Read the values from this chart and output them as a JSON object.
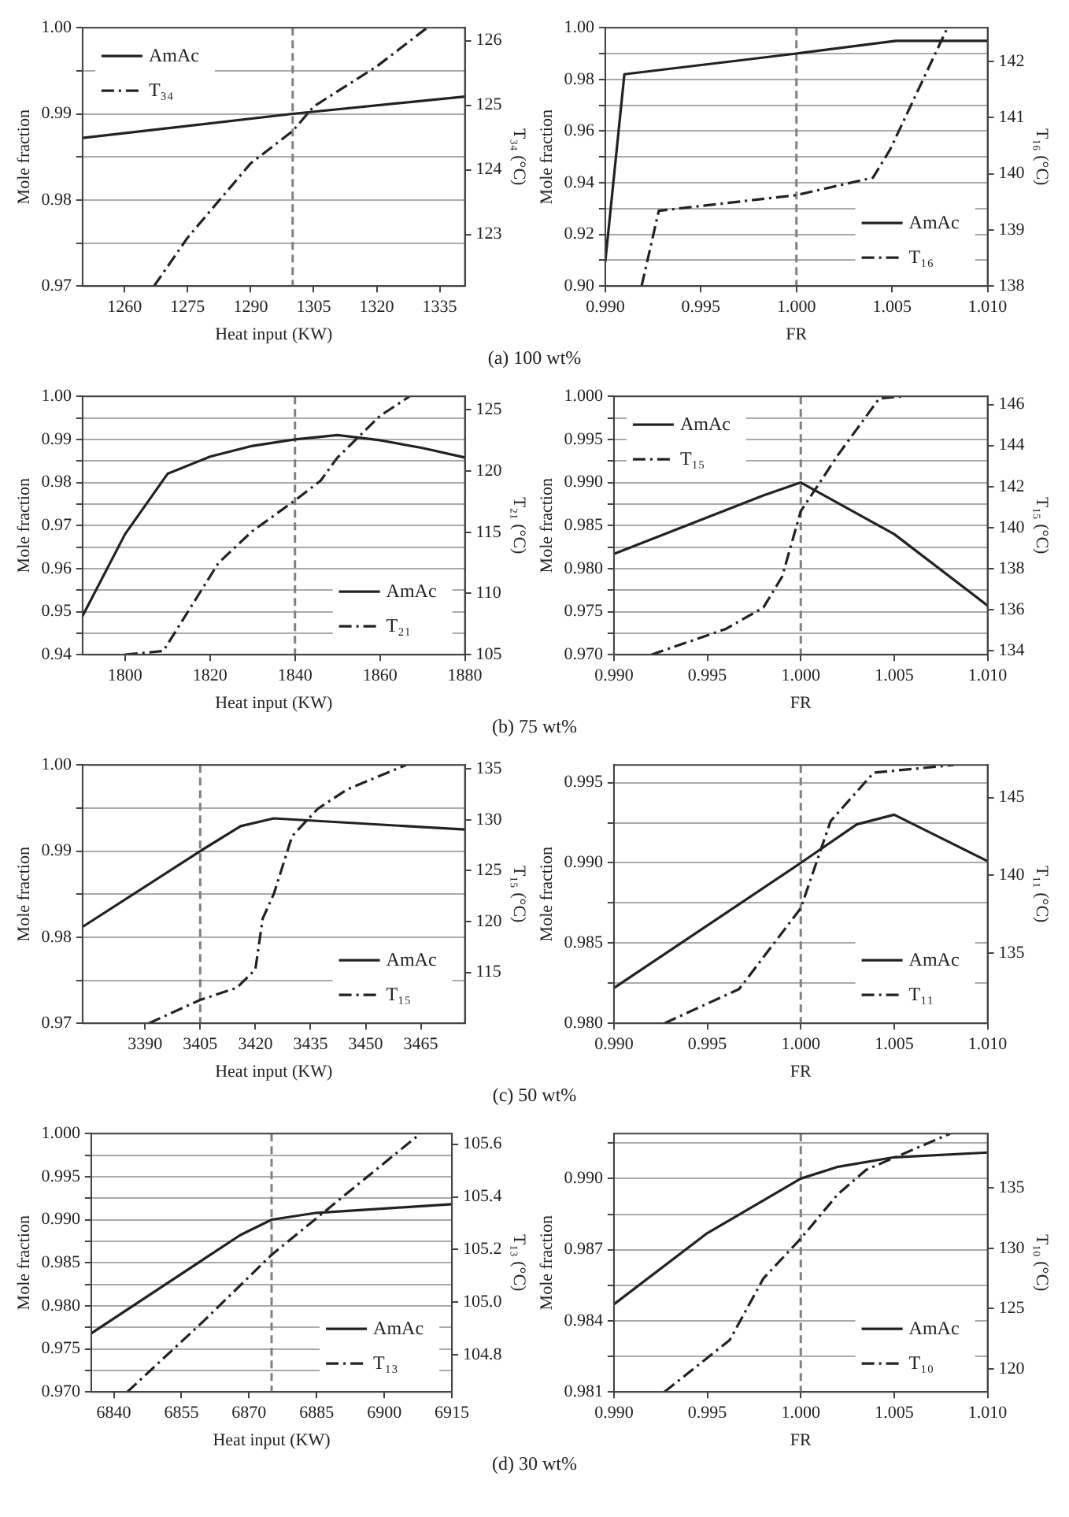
{
  "chart_data": [
    {
      "type": "line",
      "xlabel": "Heat input (KW)",
      "ylabel": "Mole fraction",
      "y2label": "T₃₄ (°C)",
      "annotations": [
        "(a) 100 wt%"
      ],
      "legend": "top left",
      "grid": "y",
      "xlim": [
        1250,
        1341
      ],
      "xticks": [
        1260,
        1275,
        1290,
        1305,
        1320,
        1335
      ],
      "ylim": [
        0.97,
        1.0
      ],
      "yticks": [
        0.97,
        {
          "value": 0.975,
          "label": null
        },
        0.98,
        {
          "value": 0.985,
          "label": null
        },
        0.99,
        {
          "value": 0.995,
          "label": null
        },
        {
          "value": 1.0,
          "label": "1.00"
        }
      ],
      "y2lim": [
        122.2,
        126.2
      ],
      "y2ticks": [
        123,
        124,
        125,
        126
      ],
      "ref_lines": [
        {
          "axis": "x",
          "value": 1300,
          "label": null,
          "color": "#808080",
          "line_style": "dashed"
        }
      ],
      "series": [
        {
          "name": "AmAc",
          "color": "#222222",
          "line_style": "solid",
          "x": [
            1250,
            1300,
            1341
          ],
          "values": [
            0.9872,
            0.99,
            0.992
          ]
        },
        {
          "name": "T₃₄",
          "color": "#222222",
          "line_style": "dashdot",
          "axis": "y2",
          "x": [
            1267,
            1275,
            1290,
            1300,
            1305,
            1320,
            1332
          ],
          "values": [
            122.2,
            122.95,
            124.1,
            124.6,
            124.98,
            125.6,
            126.2
          ]
        }
      ]
    },
    {
      "type": "line",
      "xlabel": "FR",
      "ylabel": "Mole fraction",
      "y2label": "T₁₆ (°C)",
      "legend": "bottom right",
      "grid": "y",
      "xlim": [
        0.99,
        1.01
      ],
      "xticks": [
        {
          "value": 0.99,
          "label": "0.990"
        },
        0.995,
        {
          "value": 1.0,
          "label": "1.000"
        },
        1.005,
        {
          "value": 1.01,
          "label": "1.010"
        }
      ],
      "ylim": [
        0.9,
        1.0
      ],
      "yticks": [
        {
          "value": 0.9,
          "label": "0.90"
        },
        {
          "value": 0.91,
          "label": null
        },
        0.92,
        {
          "value": 0.93,
          "label": null
        },
        0.94,
        {
          "value": 0.95,
          "label": null
        },
        0.96,
        {
          "value": 0.97,
          "label": null
        },
        0.98,
        {
          "value": 0.99,
          "label": null
        },
        {
          "value": 1.0,
          "label": "1.00"
        }
      ],
      "y2lim": [
        138,
        142.6
      ],
      "y2ticks": [
        138,
        139,
        140,
        141,
        142
      ],
      "ref_lines": [
        {
          "axis": "x",
          "value": 1.0,
          "label": null,
          "color": "#808080",
          "line_style": "dashed"
        }
      ],
      "series": [
        {
          "name": "AmAc",
          "color": "#222222",
          "line_style": "solid",
          "x": [
            0.99,
            0.991,
            1.0,
            1.0052,
            1.01
          ],
          "values": [
            0.9094,
            0.982,
            0.99,
            0.9949,
            0.9949
          ]
        },
        {
          "name": "T₁₆",
          "color": "#222222",
          "line_style": "dashdot",
          "axis": "y2",
          "x": [
            0.9919,
            0.9928,
            1.0,
            1.004,
            1.0049,
            1.0079
          ],
          "values": [
            138,
            139.34,
            139.62,
            139.93,
            140.43,
            142.6
          ]
        }
      ]
    },
    {
      "type": "line",
      "xlabel": "Heat input (KW)",
      "ylabel": "Mole fraction",
      "y2label": "T₂₁ (°C)",
      "annotations": [
        "(b) 75 wt%"
      ],
      "legend": "bottom right",
      "grid": "y",
      "xlim": [
        1790,
        1880
      ],
      "xticks": [
        1800,
        1820,
        1840,
        1860,
        1880
      ],
      "ylim": [
        0.94,
        1.0
      ],
      "yticks": [
        0.94,
        {
          "value": 0.945,
          "label": null
        },
        0.95,
        {
          "value": 0.955,
          "label": null
        },
        0.96,
        {
          "value": 0.965,
          "label": null
        },
        0.97,
        {
          "value": 0.975,
          "label": null
        },
        0.98,
        {
          "value": 0.985,
          "label": null
        },
        0.99,
        {
          "value": 0.995,
          "label": null
        },
        {
          "value": 1.0,
          "label": "1.00"
        }
      ],
      "y2lim": [
        105,
        126.1
      ],
      "y2ticks": [
        105,
        110,
        115,
        120,
        125
      ],
      "ref_lines": [
        {
          "axis": "x",
          "value": 1840,
          "label": null,
          "color": "#808080",
          "line_style": "dashed"
        }
      ],
      "series": [
        {
          "name": "AmAc",
          "color": "#222222",
          "line_style": "solid",
          "x": [
            1790,
            1800,
            1810,
            1820,
            1830,
            1840,
            1850,
            1860,
            1870,
            1880
          ],
          "values": [
            0.949,
            0.968,
            0.982,
            0.986,
            0.9885,
            0.99,
            0.991,
            0.9898,
            0.988,
            0.9858
          ]
        },
        {
          "name": "T₂₁",
          "color": "#222222",
          "line_style": "dashdot",
          "axis": "y2",
          "x": [
            1800,
            1809,
            1822,
            1830,
            1840,
            1846,
            1850,
            1860,
            1867
          ],
          "values": [
            105,
            105.3,
            112.5,
            115.1,
            117.6,
            119.2,
            121.1,
            124.5,
            126.1
          ]
        }
      ]
    },
    {
      "type": "line",
      "xlabel": "FR",
      "ylabel": "Mole fraction",
      "y2label": "T₁₅ (°C)",
      "legend": "top left",
      "grid": "y",
      "xlim": [
        0.99,
        1.01
      ],
      "xticks": [
        {
          "value": 0.99,
          "label": "0.990"
        },
        0.995,
        {
          "value": 1.0,
          "label": "1.000"
        },
        1.005,
        {
          "value": 1.01,
          "label": "1.010"
        }
      ],
      "ylim": [
        0.97,
        1.0
      ],
      "yticks": [
        {
          "value": 0.97,
          "label": "0.970"
        },
        {
          "value": 0.9725,
          "label": null
        },
        0.975,
        {
          "value": 0.9775,
          "label": null
        },
        {
          "value": 0.98,
          "label": "0.980"
        },
        {
          "value": 0.9825,
          "label": null
        },
        0.985,
        {
          "value": 0.9875,
          "label": null
        },
        {
          "value": 0.99,
          "label": "0.990"
        },
        {
          "value": 0.9925,
          "label": null
        },
        0.995,
        {
          "value": 0.9975,
          "label": null
        },
        {
          "value": 1.0,
          "label": "1.000"
        }
      ],
      "y2lim": [
        133.8,
        146.4
      ],
      "y2ticks": [
        134,
        136,
        138,
        140,
        142,
        144,
        146
      ],
      "ref_lines": [
        {
          "axis": "x",
          "value": 1.0,
          "label": null,
          "color": "#808080",
          "line_style": "dashed"
        }
      ],
      "series": [
        {
          "name": "AmAc",
          "color": "#222222",
          "line_style": "solid",
          "x": [
            0.99,
            0.998,
            1.0,
            1.005,
            1.01
          ],
          "values": [
            0.9817,
            0.9885,
            0.99,
            0.984,
            0.9757
          ]
        },
        {
          "name": "T₁₅",
          "color": "#222222",
          "line_style": "dashdot",
          "axis": "y2",
          "x": [
            0.992,
            0.996,
            0.998,
            0.999,
            1.0,
            1.002,
            1.0042,
            1.0055
          ],
          "values": [
            133.8,
            135.06,
            136.1,
            137.6,
            140.8,
            143.55,
            146.3,
            146.4
          ]
        }
      ]
    },
    {
      "type": "line",
      "xlabel": "Heat input (KW)",
      "ylabel": "Mole fraction",
      "y2label": "T₁₅ (°C)",
      "annotations": [
        "(c) 50 wt%"
      ],
      "legend": "bottom right",
      "grid": "y",
      "xlim": [
        3373,
        3477
      ],
      "xticks": [
        3390,
        3405,
        3420,
        3435,
        3450,
        3465
      ],
      "ylim": [
        0.97,
        1.0
      ],
      "yticks": [
        0.97,
        {
          "value": 0.975,
          "label": null
        },
        0.98,
        {
          "value": 0.985,
          "label": null
        },
        0.99,
        {
          "value": 0.995,
          "label": null
        },
        {
          "value": 1.0,
          "label": "1.00"
        }
      ],
      "y2lim": [
        110,
        135.4
      ],
      "y2ticks": [
        115,
        120,
        125,
        130,
        135
      ],
      "ref_lines": [
        {
          "axis": "x",
          "value": 3405,
          "label": null,
          "color": "#808080",
          "line_style": "dashed"
        }
      ],
      "series": [
        {
          "name": "AmAc",
          "color": "#222222",
          "line_style": "solid",
          "x": [
            3373,
            3405,
            3416,
            3425,
            3477
          ],
          "values": [
            0.9812,
            0.99,
            0.9929,
            0.9938,
            0.9925
          ]
        },
        {
          "name": "T₁₅",
          "color": "#222222",
          "line_style": "dashdot",
          "axis": "y2",
          "x": [
            3391,
            3405,
            3415,
            3420,
            3422,
            3425,
            3430,
            3437,
            3445,
            3461
          ],
          "values": [
            110,
            112.3,
            113.5,
            115.3,
            120.3,
            122.7,
            128.4,
            131.1,
            133.0,
            135.4
          ]
        }
      ]
    },
    {
      "type": "line",
      "xlabel": "FR",
      "ylabel": "Mole fraction",
      "y2label": "T₁₁ (°C)",
      "legend": "bottom right",
      "grid": "y",
      "xlim": [
        0.99,
        1.01
      ],
      "xticks": [
        {
          "value": 0.99,
          "label": "0.990"
        },
        0.995,
        {
          "value": 1.0,
          "label": "1.000"
        },
        1.005,
        {
          "value": 1.01,
          "label": "1.010"
        }
      ],
      "ylim": [
        0.98,
        0.9961
      ],
      "yticks": [
        {
          "value": 0.98,
          "label": "0.980"
        },
        {
          "value": 0.9825,
          "label": null
        },
        0.985,
        {
          "value": 0.9875,
          "label": null
        },
        {
          "value": 0.99,
          "label": "0.990"
        },
        {
          "value": 0.9925,
          "label": null
        },
        0.995
      ],
      "y2lim": [
        130.5,
        147.1
      ],
      "y2ticks": [
        135,
        140,
        145
      ],
      "ref_lines": [
        {
          "axis": "x",
          "value": 1.0,
          "label": null,
          "color": "#808080",
          "line_style": "dashed"
        }
      ],
      "series": [
        {
          "name": "AmAc",
          "color": "#222222",
          "line_style": "solid",
          "x": [
            0.99,
            1.0,
            1.003,
            1.005,
            1.01
          ],
          "values": [
            0.9822,
            0.99,
            0.9924,
            0.993,
            0.9901
          ]
        },
        {
          "name": "T₁₁",
          "color": "#222222",
          "line_style": "dashdot",
          "axis": "y2",
          "x": [
            0.9927,
            0.9967,
            1.0,
            1.0016,
            1.0039,
            1.0082
          ],
          "values": [
            130.5,
            132.7,
            137.9,
            143.5,
            146.6,
            147.1
          ]
        }
      ]
    },
    {
      "type": "line",
      "xlabel": "Heat input (KW)",
      "ylabel": "Mole fraction",
      "y2label": "T₁₃ (°C)",
      "annotations": [
        "(d) 30 wt%"
      ],
      "legend": "bottom right",
      "grid": "y",
      "xlim": [
        6835,
        6915
      ],
      "xticks": [
        6840,
        6855,
        6870,
        6885,
        6900,
        6915
      ],
      "ylim": [
        0.97,
        1.0
      ],
      "yticks": [
        {
          "value": 0.97,
          "label": "0.970"
        },
        {
          "value": 0.9725,
          "label": null
        },
        0.975,
        {
          "value": 0.9775,
          "label": null
        },
        {
          "value": 0.98,
          "label": "0.980"
        },
        {
          "value": 0.9825,
          "label": null
        },
        0.985,
        {
          "value": 0.9875,
          "label": null
        },
        {
          "value": 0.99,
          "label": "0.990"
        },
        {
          "value": 0.9925,
          "label": null
        },
        0.995,
        {
          "value": 0.9975,
          "label": null
        },
        {
          "value": 1.0,
          "label": "1.000"
        }
      ],
      "y2lim": [
        104.66,
        105.64
      ],
      "y2ticks": [
        104.8,
        {
          "value": 105.0,
          "label": "105.0"
        },
        105.2,
        105.4,
        105.6
      ],
      "ref_lines": [
        {
          "axis": "x",
          "value": 6875,
          "label": null,
          "color": "#808080",
          "line_style": "dashed"
        }
      ],
      "series": [
        {
          "name": "AmAc",
          "color": "#222222",
          "line_style": "solid",
          "x": [
            6835,
            6868,
            6875,
            6885,
            6900,
            6915
          ],
          "values": [
            0.9768,
            0.9882,
            0.99,
            0.9908,
            0.9913,
            0.9918
          ]
        },
        {
          "name": "T₁₃",
          "color": "#222222",
          "line_style": "dashdot",
          "axis": "y2",
          "x": [
            6843,
            6860,
            6875,
            6908
          ],
          "values": [
            104.66,
            104.93,
            105.18,
            105.64
          ]
        }
      ]
    },
    {
      "type": "line",
      "xlabel": "FR",
      "ylabel": "Mole fraction",
      "y2label": "T₁₀ (°C)",
      "legend": "bottom right",
      "grid": "y",
      "xlim": [
        0.99,
        1.01
      ],
      "xticks": [
        {
          "value": 0.99,
          "label": "0.990"
        },
        0.995,
        {
          "value": 1.0,
          "label": "1.000"
        },
        1.005,
        {
          "value": 1.01,
          "label": "1.010"
        }
      ],
      "ylim": [
        0.981,
        0.9919
      ],
      "yticks": [
        0.981,
        {
          "value": 0.9825,
          "label": null
        },
        0.984,
        {
          "value": 0.9855,
          "label": null
        },
        0.987,
        {
          "value": 0.9885,
          "label": null
        },
        {
          "value": 0.99,
          "label": "0.990"
        },
        {
          "value": 0.9915,
          "label": null
        }
      ],
      "y2lim": [
        118.1,
        139.5
      ],
      "y2ticks": [
        120,
        125,
        130,
        135
      ],
      "ref_lines": [
        {
          "axis": "x",
          "value": 1.0,
          "label": null,
          "color": "#808080",
          "line_style": "dashed"
        }
      ],
      "series": [
        {
          "name": "AmAc",
          "color": "#222222",
          "line_style": "solid",
          "x": [
            0.99,
            0.995,
            1.0,
            1.002,
            1.005,
            1.01
          ],
          "values": [
            0.9847,
            0.9877,
            0.99,
            0.9905,
            0.9909,
            0.9911
          ]
        },
        {
          "name": "T₁₀",
          "color": "#222222",
          "line_style": "dashdot",
          "axis": "y2",
          "x": [
            0.9927,
            0.9962,
            0.998,
            1.0,
            1.002,
            1.0035,
            1.008
          ],
          "values": [
            118.1,
            122.4,
            127.5,
            130.8,
            134.5,
            136.5,
            139.5
          ]
        }
      ]
    }
  ]
}
